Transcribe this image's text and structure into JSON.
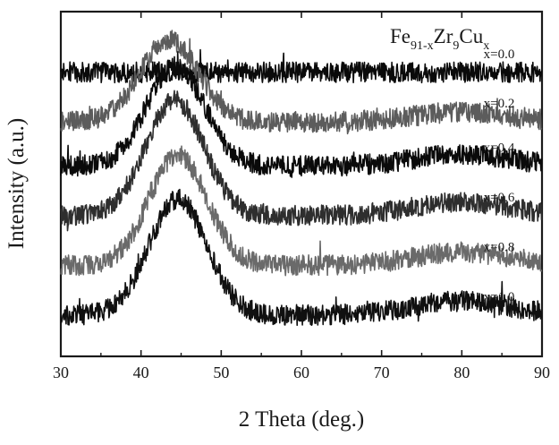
{
  "chart_data": {
    "type": "line",
    "title": "",
    "xlabel": "2 Theta (deg.)",
    "ylabel": "Intensity (a.u.)",
    "xlim": [
      30,
      90
    ],
    "x_ticks": [
      "30",
      "40",
      "50",
      "60",
      "70",
      "80",
      "90"
    ],
    "y_ticks_labeled": false,
    "grid": false,
    "annotation": {
      "base": "Fe",
      "sub1": "91-x",
      "mid1": "Zr",
      "sub2": "9",
      "mid2": "Cu",
      "sub3": "x"
    },
    "series": [
      {
        "name": "x=0.0",
        "color": "#0a0a0a",
        "peak_center": 44.0,
        "peak_height": 0.0,
        "baseline": 0.78
      },
      {
        "name": "x=0.2",
        "color": "#5c5c5c",
        "peak_center": 43.5,
        "peak_height": 0.3,
        "baseline": 0.6
      },
      {
        "name": "x=0.4",
        "color": "#0a0a0a",
        "peak_center": 44.3,
        "peak_height": 0.36,
        "baseline": 0.44
      },
      {
        "name": "x=0.6",
        "color": "#2e2e2e",
        "peak_center": 44.2,
        "peak_height": 0.42,
        "baseline": 0.26
      },
      {
        "name": "x=0.8",
        "color": "#6a6a6a",
        "peak_center": 44.6,
        "peak_height": 0.4,
        "baseline": 0.08
      },
      {
        "name": "x=1.0",
        "color": "#101010",
        "peak_center": 44.6,
        "peak_height": 0.42,
        "baseline": -0.1
      }
    ]
  }
}
